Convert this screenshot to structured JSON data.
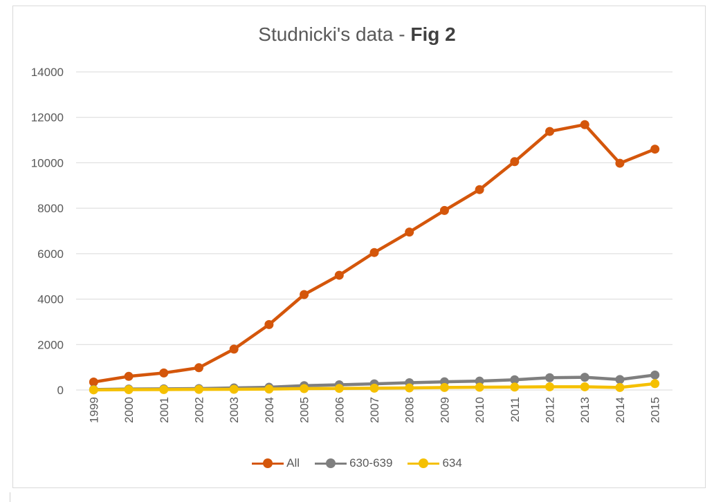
{
  "chart_data": {
    "type": "line",
    "title_main": "Studnicki's data - ",
    "title_bold": "Fig 2",
    "x": [
      "1999",
      "2000",
      "2001",
      "2002",
      "2003",
      "2004",
      "2005",
      "2006",
      "2007",
      "2008",
      "2009",
      "2010",
      "2011",
      "2012",
      "2013",
      "2014",
      "2015"
    ],
    "ylim": [
      0,
      14000
    ],
    "yticks": [
      0,
      2000,
      4000,
      6000,
      8000,
      10000,
      12000,
      14000
    ],
    "grid": true,
    "legend": "bottom",
    "series": [
      {
        "name": "All",
        "color": "#d4560b",
        "values": [
          350,
          600,
          750,
          980,
          1800,
          2880,
          4200,
          5050,
          6050,
          6950,
          7900,
          8820,
          10050,
          11380,
          11680,
          9980,
          10600
        ]
      },
      {
        "name": "630-639",
        "color": "#7f7f7f",
        "values": [
          20,
          40,
          50,
          60,
          90,
          120,
          190,
          230,
          270,
          320,
          360,
          390,
          450,
          540,
          560,
          460,
          660
        ]
      },
      {
        "name": "634",
        "color": "#f5c000",
        "values": [
          5,
          15,
          20,
          25,
          30,
          40,
          60,
          70,
          80,
          90,
          110,
          120,
          130,
          140,
          140,
          110,
          280
        ]
      }
    ]
  }
}
